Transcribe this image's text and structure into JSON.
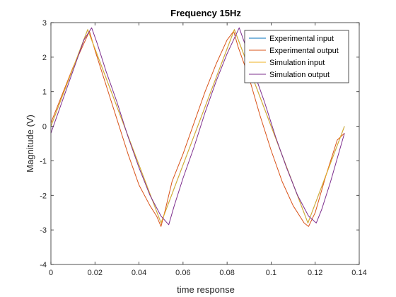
{
  "chart_data": {
    "type": "line",
    "title": "Frequency 15Hz",
    "xlabel": "time response",
    "ylabel": "Magnitude (V)",
    "xlim": [
      0,
      0.14
    ],
    "ylim": [
      -4,
      3
    ],
    "x_ticks": [
      0,
      0.02,
      0.04,
      0.06,
      0.08,
      0.1,
      0.12,
      0.14
    ],
    "x_tick_labels": [
      "0",
      "0.02",
      "0.04",
      "0.06",
      "0.08",
      "0.1",
      "0.12",
      "0.14"
    ],
    "y_ticks": [
      -4,
      -3,
      -2,
      -1,
      0,
      1,
      2,
      3
    ],
    "y_tick_labels": [
      "-4",
      "-3",
      "-2",
      "-1",
      "0",
      "1",
      "2",
      "3"
    ],
    "grid": false,
    "legend_position": "top-right",
    "series": [
      {
        "name": "Experimental input",
        "color": "#0072BD",
        "x": [
          0,
          0.0167,
          0.05,
          0.0833,
          0.1167,
          0.1333
        ],
        "y": [
          0,
          2.8,
          -2.8,
          2.8,
          -2.8,
          0
        ]
      },
      {
        "name": "Experimental output",
        "color": "#D95319",
        "x": [
          0,
          0.005,
          0.01,
          0.015,
          0.0175,
          0.02,
          0.025,
          0.03,
          0.035,
          0.04,
          0.045,
          0.048,
          0.05,
          0.052,
          0.055,
          0.06,
          0.065,
          0.07,
          0.075,
          0.08,
          0.083,
          0.085,
          0.09,
          0.095,
          0.1,
          0.105,
          0.11,
          0.115,
          0.117,
          0.12,
          0.125,
          0.13,
          0.1333
        ],
        "y": [
          0.1,
          0.9,
          1.7,
          2.4,
          2.75,
          2.2,
          1.2,
          0.2,
          -0.8,
          -1.7,
          -2.3,
          -2.6,
          -2.9,
          -2.4,
          -1.6,
          -0.8,
          0.1,
          1.0,
          1.8,
          2.5,
          2.75,
          2.3,
          1.4,
          0.3,
          -0.7,
          -1.6,
          -2.3,
          -2.8,
          -2.9,
          -2.5,
          -1.4,
          -0.4,
          -0.2
        ]
      },
      {
        "name": "Simulation input",
        "color": "#EDB120",
        "x": [
          0,
          0.0167,
          0.05,
          0.0833,
          0.1167,
          0.1333
        ],
        "y": [
          0,
          2.8,
          -2.8,
          2.8,
          -2.8,
          0
        ]
      },
      {
        "name": "Simulation output",
        "color": "#7E2F8E",
        "x": [
          0,
          0.005,
          0.01,
          0.015,
          0.0185,
          0.021,
          0.025,
          0.03,
          0.035,
          0.04,
          0.045,
          0.05,
          0.0535,
          0.056,
          0.06,
          0.065,
          0.07,
          0.075,
          0.08,
          0.0855,
          0.088,
          0.092,
          0.097,
          0.102,
          0.107,
          0.112,
          0.117,
          0.1205,
          0.123,
          0.127,
          0.1333
        ],
        "y": [
          -0.2,
          0.7,
          1.6,
          2.5,
          2.85,
          2.4,
          1.6,
          0.7,
          -0.3,
          -1.2,
          -2.0,
          -2.6,
          -2.85,
          -2.3,
          -1.5,
          -0.6,
          0.4,
          1.3,
          2.1,
          2.85,
          2.4,
          1.6,
          0.7,
          -0.3,
          -1.2,
          -2.0,
          -2.6,
          -2.8,
          -2.4,
          -1.6,
          -0.2
        ]
      }
    ]
  }
}
